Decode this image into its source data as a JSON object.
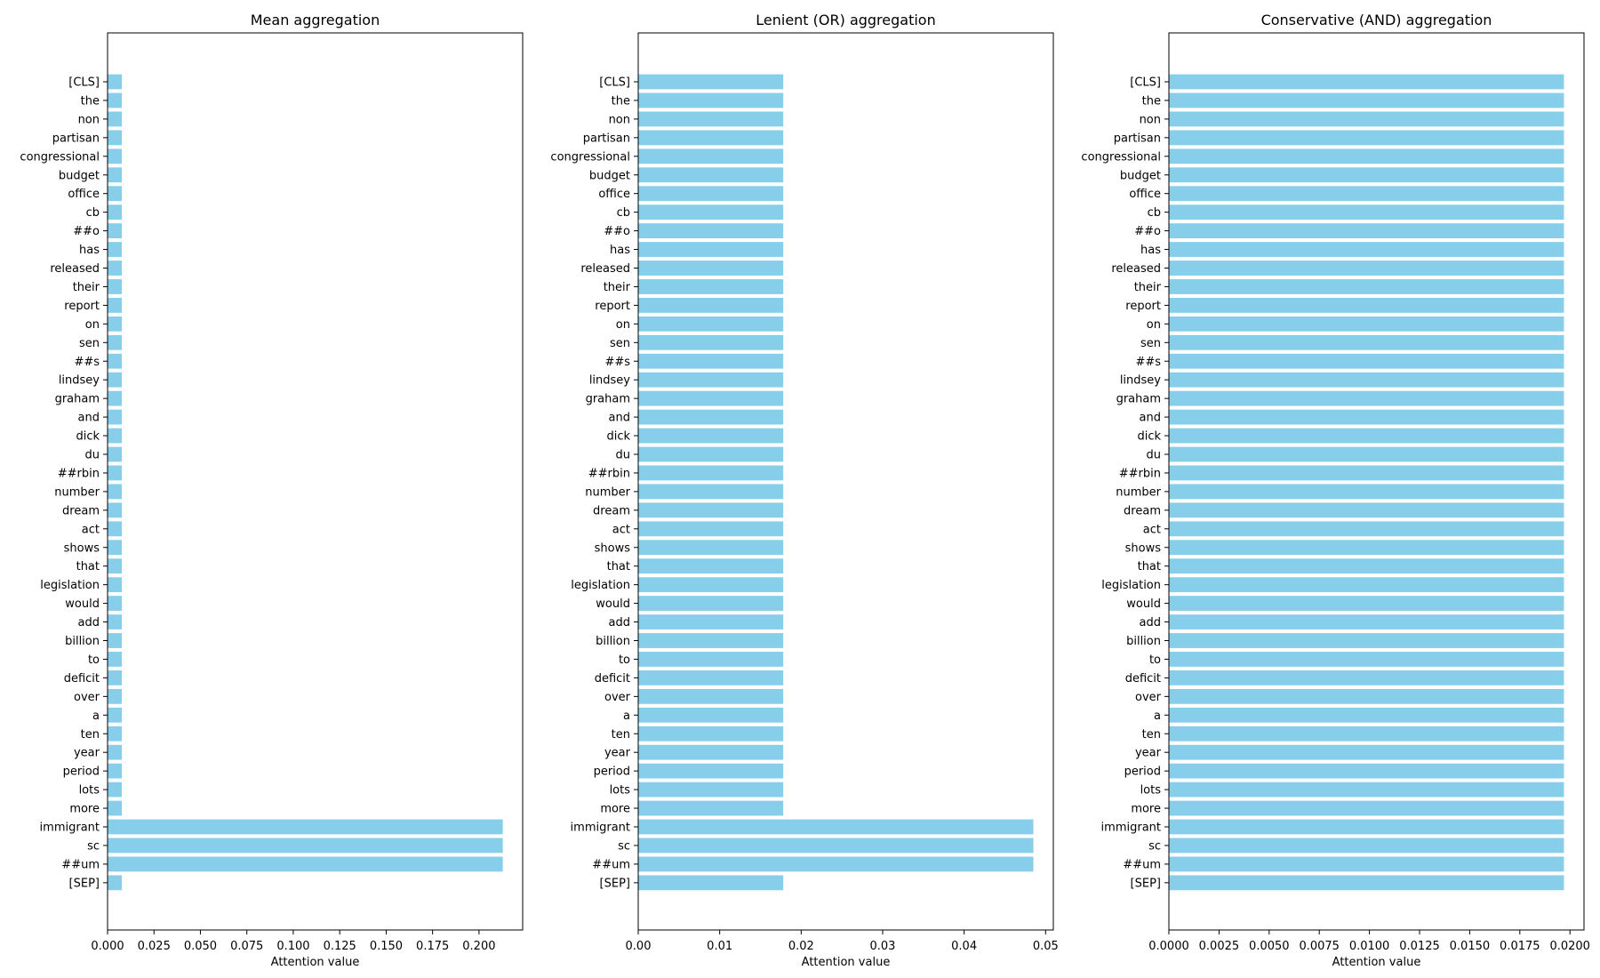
{
  "figure": {
    "bar_color": "#87ceeb",
    "axis_color": "#000000",
    "background": "#ffffff"
  },
  "chart_data": [
    {
      "type": "bar",
      "orientation": "horizontal",
      "title": "Mean aggregation",
      "xlabel": "Attention value",
      "ylabel": "",
      "xlim": [
        0,
        0.2235
      ],
      "xticks": [
        0,
        0.025,
        0.05,
        0.075,
        0.1,
        0.125,
        0.15,
        0.175,
        0.2
      ],
      "xtick_labels": [
        "0.000",
        "0.025",
        "0.050",
        "0.075",
        "0.100",
        "0.125",
        "0.150",
        "0.175",
        "0.200"
      ],
      "categories": [
        "[CLS]",
        "the",
        "non",
        "partisan",
        "congressional",
        "budget",
        "office",
        "cb",
        "##o",
        "has",
        "released",
        "their",
        "report",
        "on",
        "sen",
        "##s",
        "lindsey",
        "graham",
        "and",
        "dick",
        "du",
        "##rbin",
        "number",
        "dream",
        "act",
        "shows",
        "that",
        "legislation",
        "would",
        "add",
        "billion",
        "to",
        "deficit",
        "over",
        "a",
        "ten",
        "year",
        "period",
        "lots",
        "more",
        "immigrant",
        "sc",
        "##um",
        "[SEP]"
      ],
      "values": [
        0.0077,
        0.0077,
        0.0077,
        0.0077,
        0.0077,
        0.0077,
        0.0077,
        0.0077,
        0.0077,
        0.0077,
        0.0077,
        0.0077,
        0.0077,
        0.0077,
        0.0077,
        0.0077,
        0.0077,
        0.0077,
        0.0077,
        0.0077,
        0.0077,
        0.0077,
        0.0077,
        0.0077,
        0.0077,
        0.0077,
        0.0077,
        0.0077,
        0.0077,
        0.0077,
        0.0077,
        0.0077,
        0.0077,
        0.0077,
        0.0077,
        0.0077,
        0.0077,
        0.0077,
        0.0077,
        0.0077,
        0.2128,
        0.2128,
        0.2128,
        0.0077
      ]
    },
    {
      "type": "bar",
      "orientation": "horizontal",
      "title": "Lenient (OR) aggregation",
      "xlabel": "Attention value",
      "ylabel": "",
      "xlim": [
        0,
        0.05095
      ],
      "xticks": [
        0,
        0.01,
        0.02,
        0.03,
        0.04,
        0.05
      ],
      "xtick_labels": [
        "0.00",
        "0.01",
        "0.02",
        "0.03",
        "0.04",
        "0.05"
      ],
      "categories": [
        "[CLS]",
        "the",
        "non",
        "partisan",
        "congressional",
        "budget",
        "office",
        "cb",
        "##o",
        "has",
        "released",
        "their",
        "report",
        "on",
        "sen",
        "##s",
        "lindsey",
        "graham",
        "and",
        "dick",
        "du",
        "##rbin",
        "number",
        "dream",
        "act",
        "shows",
        "that",
        "legislation",
        "would",
        "add",
        "billion",
        "to",
        "deficit",
        "over",
        "a",
        "ten",
        "year",
        "period",
        "lots",
        "more",
        "immigrant",
        "sc",
        "##um",
        "[SEP]"
      ],
      "values": [
        0.0178,
        0.0178,
        0.0178,
        0.0178,
        0.0178,
        0.0178,
        0.0178,
        0.0178,
        0.0178,
        0.0178,
        0.0178,
        0.0178,
        0.0178,
        0.0178,
        0.0178,
        0.0178,
        0.0178,
        0.0178,
        0.0178,
        0.0178,
        0.0178,
        0.0178,
        0.0178,
        0.0178,
        0.0178,
        0.0178,
        0.0178,
        0.0178,
        0.0178,
        0.0178,
        0.0178,
        0.0178,
        0.0178,
        0.0178,
        0.0178,
        0.0178,
        0.0178,
        0.0178,
        0.0178,
        0.0178,
        0.0485,
        0.0485,
        0.0485,
        0.0178
      ]
    },
    {
      "type": "bar",
      "orientation": "horizontal",
      "title": "Conservative (AND) aggregation",
      "xlabel": "Attention value",
      "ylabel": "",
      "xlim": [
        0,
        0.0207
      ],
      "xticks": [
        0,
        0.0025,
        0.005,
        0.0075,
        0.01,
        0.0125,
        0.015,
        0.0175,
        0.02
      ],
      "xtick_labels": [
        "0.0000",
        "0.0025",
        "0.0050",
        "0.0075",
        "0.0100",
        "0.0125",
        "0.0150",
        "0.0175",
        "0.0200"
      ],
      "categories": [
        "[CLS]",
        "the",
        "non",
        "partisan",
        "congressional",
        "budget",
        "office",
        "cb",
        "##o",
        "has",
        "released",
        "their",
        "report",
        "on",
        "sen",
        "##s",
        "lindsey",
        "graham",
        "and",
        "dick",
        "du",
        "##rbin",
        "number",
        "dream",
        "act",
        "shows",
        "that",
        "legislation",
        "would",
        "add",
        "billion",
        "to",
        "deficit",
        "over",
        "a",
        "ten",
        "year",
        "period",
        "lots",
        "more",
        "immigrant",
        "sc",
        "##um",
        "[SEP]"
      ],
      "values": [
        0.0197,
        0.0197,
        0.0197,
        0.0197,
        0.0197,
        0.0197,
        0.0197,
        0.0197,
        0.0197,
        0.0197,
        0.0197,
        0.0197,
        0.0197,
        0.0197,
        0.0197,
        0.0197,
        0.0197,
        0.0197,
        0.0197,
        0.0197,
        0.0197,
        0.0197,
        0.0197,
        0.0197,
        0.0197,
        0.0197,
        0.0197,
        0.0197,
        0.0197,
        0.0197,
        0.0197,
        0.0197,
        0.0197,
        0.0197,
        0.0197,
        0.0197,
        0.0197,
        0.0197,
        0.0197,
        0.0197,
        0.0197,
        0.0197,
        0.0197,
        0.0197
      ]
    }
  ]
}
